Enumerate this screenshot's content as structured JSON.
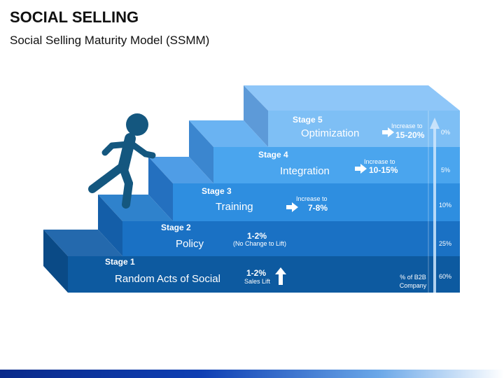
{
  "title": "SOCIAL SELLING",
  "subtitle": "Social Selling Maturity Model (SSMM)",
  "icons": {
    "runner": "person-climbing-icon",
    "arrow_up": "arrow-up-icon",
    "arrow_right": "arrow-right-icon"
  },
  "colors": {
    "step1": "#0d5aa0",
    "step2": "#1a71c4",
    "step3": "#2e8ee0",
    "step4": "#4aa5ee",
    "step5": "#7ebff5",
    "runner": "#14577f"
  },
  "stages": [
    {
      "stage": "Stage 1",
      "name": "Random Acts of Social",
      "value": "1-2%",
      "note": "Sales Lift",
      "percent": "60%"
    },
    {
      "stage": "Stage 2",
      "name": "Policy",
      "value": "1-2%",
      "note": "(No Change to Lift)",
      "percent": "25%"
    },
    {
      "stage": "Stage 3",
      "name": "Training",
      "increase": "Increase to",
      "value": "7-8%",
      "percent": "10%"
    },
    {
      "stage": "Stage 4",
      "name": "Integration",
      "increase": "Increase to",
      "value": "10-15%",
      "percent": "5%"
    },
    {
      "stage": "Stage 5",
      "name": "Optimization",
      "increase": "Increase to",
      "value": "15-20%",
      "percent": "0%"
    }
  ],
  "axis_label": "% of B2B Company"
}
